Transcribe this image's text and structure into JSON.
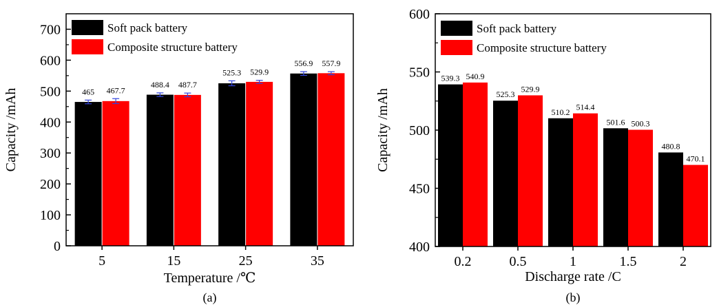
{
  "colors": {
    "series_1": "#000000",
    "series_2": "#ff0000",
    "error_bar": "#3344dd",
    "axis": "#000000"
  },
  "chart_data": [
    {
      "type": "bar",
      "caption": "(a)",
      "xlabel": "Temperature /℃",
      "ylabel": "Capacity /mAh",
      "categories": [
        "5",
        "15",
        "25",
        "35"
      ],
      "ylim": [
        0,
        750
      ],
      "yticks": [
        0,
        100,
        200,
        300,
        400,
        500,
        600,
        700
      ],
      "error_bars": true,
      "legend_position": "top-left",
      "series": [
        {
          "name": "Soft pack battery",
          "color": "#000000",
          "values": [
            465,
            488.4,
            525.3,
            556.9
          ],
          "labels": [
            "465",
            "488.4",
            "525.3",
            "556.9"
          ],
          "errors": [
            6,
            6,
            8,
            6
          ]
        },
        {
          "name": "Composite structure battery",
          "color": "#ff0000",
          "values": [
            467.7,
            487.7,
            529.9,
            557.9
          ],
          "labels": [
            "467.7",
            "487.7",
            "529.9",
            "557.9"
          ],
          "errors": [
            8,
            6,
            5,
            5
          ]
        }
      ]
    },
    {
      "type": "bar",
      "caption": "(b)",
      "xlabel": "Discharge rate /C",
      "ylabel": "Capacity /mAh",
      "categories": [
        "0.2",
        "0.5",
        "1",
        "1.5",
        "2"
      ],
      "ylim": [
        400,
        600
      ],
      "yticks": [
        400,
        450,
        500,
        550,
        600
      ],
      "error_bars": false,
      "legend_position": "top-left",
      "series": [
        {
          "name": "Soft pack battery",
          "color": "#000000",
          "values": [
            539.3,
            525.3,
            510.2,
            501.6,
            480.8
          ],
          "labels": [
            "539.3",
            "525.3",
            "510.2",
            "501.6",
            "480.8"
          ]
        },
        {
          "name": "Composite structure battery",
          "color": "#ff0000",
          "values": [
            540.9,
            529.9,
            514.4,
            500.3,
            470.1
          ],
          "labels": [
            "540.9",
            "529.9",
            "514.4",
            "500.3",
            "470.1"
          ]
        }
      ]
    }
  ]
}
